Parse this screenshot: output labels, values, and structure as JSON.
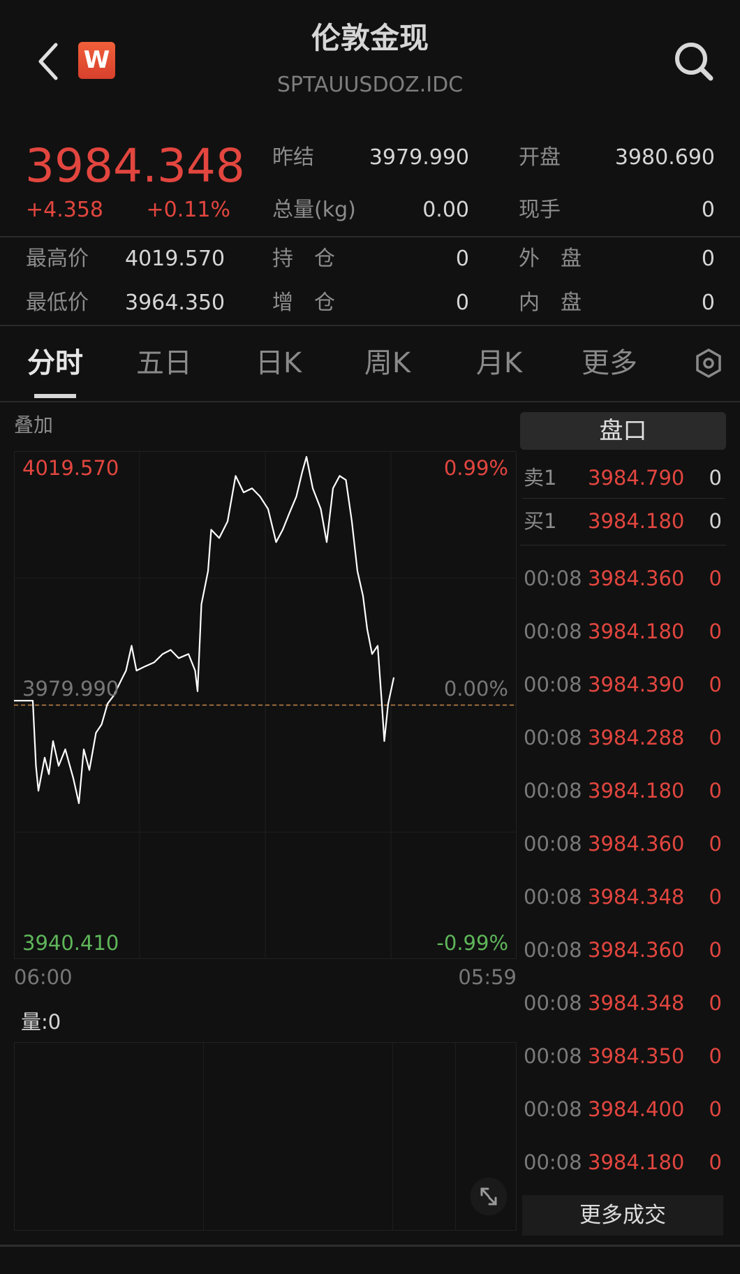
{
  "header": {
    "title": "伦敦金现",
    "subtitle": "SPTAUUSDOZ.IDC",
    "logo_letter": "W",
    "icons": {
      "back": "chevron-left-icon",
      "search": "search-icon",
      "logo": "app-logo-icon"
    }
  },
  "quote": {
    "last_price": "3984.348",
    "change": "+4.358",
    "change_pct": "+0.11%",
    "fields": [
      {
        "label": "昨结",
        "value": "3979.990"
      },
      {
        "label": "开盘",
        "value": "3980.690"
      },
      {
        "label": "总量(kg)",
        "value": "0.00"
      },
      {
        "label": "现手",
        "value": "0"
      },
      {
        "label": "最高价",
        "value": "4019.570"
      },
      {
        "label": "持　仓",
        "value": "0"
      },
      {
        "label": "外　盘",
        "value": "0"
      },
      {
        "label": "最低价",
        "value": "3964.350"
      },
      {
        "label": "增　仓",
        "value": "0"
      },
      {
        "label": "内　盘",
        "value": "0"
      }
    ]
  },
  "tabs": [
    {
      "label": "分时",
      "active": true
    },
    {
      "label": "五日"
    },
    {
      "label": "日K"
    },
    {
      "label": "周K"
    },
    {
      "label": "月K"
    },
    {
      "label": "更多"
    }
  ],
  "tabs_settings_icon": "settings-hexagon-icon",
  "overlay_label": "叠加",
  "volume_label": "量:0",
  "expand_icon": "expand-arrows-icon",
  "colors": {
    "up": "#e2463f",
    "down": "#5fb65a",
    "background": "#111111",
    "line": "#ffffff",
    "prev_close_line": "#c8884a"
  },
  "chart_data": {
    "type": "line",
    "ylim": [
      3940.41,
      4019.57
    ],
    "prev_close": 3979.99,
    "y_labels": {
      "top": "4019.570",
      "middle": "3979.990",
      "bottom": "3940.410"
    },
    "pct_labels": {
      "top": "0.99%",
      "middle": "0.00%",
      "bottom": "-0.99%"
    },
    "x_labels": {
      "start": "06:00",
      "end": "05:59"
    },
    "grid": true,
    "x": [
      "06:00",
      "06:54",
      "07:03",
      "07:10",
      "07:28",
      "07:40",
      "07:52",
      "08:08",
      "08:27",
      "08:50",
      "09:06",
      "09:20",
      "09:36",
      "09:55",
      "10:11",
      "10:28",
      "10:46",
      "11:09",
      "11:21",
      "11:37",
      "11:51",
      "12:15",
      "12:42",
      "13:06",
      "13:29",
      "13:52",
      "14:20",
      "14:39",
      "14:46",
      "14:57",
      "15:16",
      "15:25",
      "15:48",
      "16:12",
      "16:35",
      "16:58",
      "17:22",
      "17:45",
      "18:08",
      "18:31",
      "18:50",
      "19:09",
      "19:29",
      "19:46",
      "19:58",
      "20:16",
      "20:39",
      "20:56",
      "21:14",
      "21:33",
      "21:51",
      "22:08",
      "22:24",
      "22:40",
      "22:52",
      "23:06",
      "23:22",
      "23:34",
      "23:41",
      "23:52",
      "00:08"
    ],
    "values": [
      3980.69,
      3980.69,
      3970.3,
      3966.33,
      3971.62,
      3968.98,
      3974.26,
      3970.3,
      3972.94,
      3968.32,
      3964.35,
      3972.94,
      3969.64,
      3975.58,
      3976.9,
      3980.2,
      3981.53,
      3984.17,
      3985.49,
      3989.45,
      3985.49,
      3986.15,
      3986.81,
      3988.13,
      3988.79,
      3987.47,
      3988.13,
      3985.49,
      3982.19,
      3996.06,
      4001.34,
      4007.95,
      4006.62,
      4009.27,
      4016.53,
      4013.89,
      4014.55,
      4013.23,
      4011.25,
      4005.96,
      4007.95,
      4010.59,
      4013.23,
      4017.19,
      4019.57,
      4014.55,
      4011.25,
      4005.96,
      4014.55,
      4016.53,
      4015.87,
      4009.27,
      4001.34,
      3997.38,
      3992.09,
      3988.13,
      3989.45,
      3980.2,
      3974.26,
      3980.2,
      3984.348
    ]
  },
  "orderbook": {
    "title": "盘口",
    "ask": {
      "label": "卖1",
      "price": "3984.790",
      "qty": "0"
    },
    "bid": {
      "label": "买1",
      "price": "3984.180",
      "qty": "0"
    },
    "trades": [
      {
        "time": "00:08",
        "price": "3984.360",
        "qty": "0"
      },
      {
        "time": "00:08",
        "price": "3984.180",
        "qty": "0"
      },
      {
        "time": "00:08",
        "price": "3984.390",
        "qty": "0"
      },
      {
        "time": "00:08",
        "price": "3984.288",
        "qty": "0"
      },
      {
        "time": "00:08",
        "price": "3984.180",
        "qty": "0"
      },
      {
        "time": "00:08",
        "price": "3984.360",
        "qty": "0"
      },
      {
        "time": "00:08",
        "price": "3984.348",
        "qty": "0"
      },
      {
        "time": "00:08",
        "price": "3984.360",
        "qty": "0"
      },
      {
        "time": "00:08",
        "price": "3984.348",
        "qty": "0"
      },
      {
        "time": "00:08",
        "price": "3984.350",
        "qty": "0"
      },
      {
        "time": "00:08",
        "price": "3984.400",
        "qty": "0"
      },
      {
        "time": "00:08",
        "price": "3984.180",
        "qty": "0"
      }
    ],
    "more_label": "更多成交"
  }
}
